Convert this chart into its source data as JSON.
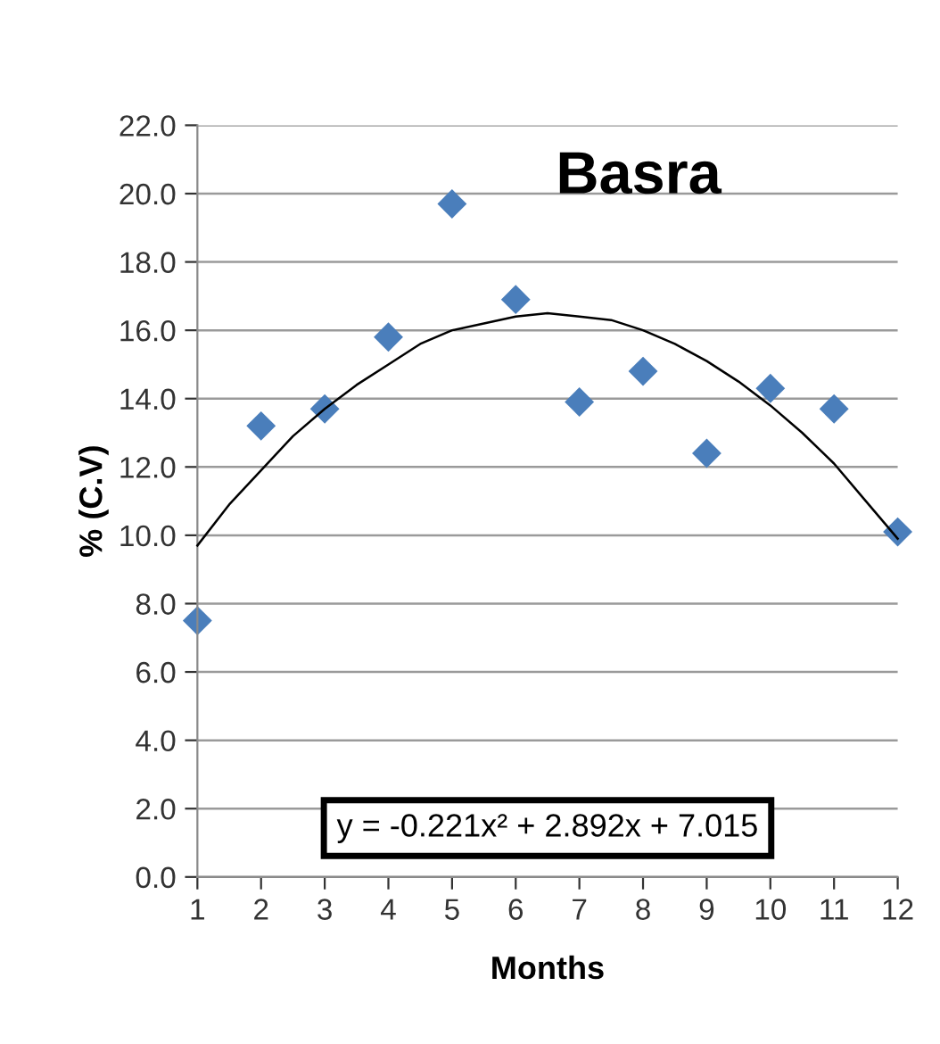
{
  "chart_data": {
    "type": "scatter",
    "title": "Basra",
    "xlabel": "Months",
    "ylabel": "% (C.V)",
    "x": [
      1,
      2,
      3,
      4,
      5,
      6,
      7,
      8,
      9,
      10,
      11,
      12
    ],
    "series": [
      {
        "color": "#4a7ebb",
        "marker": "diamond",
        "values": [
          7.5,
          13.2,
          13.7,
          15.8,
          19.7,
          16.9,
          13.9,
          14.8,
          12.4,
          14.3,
          13.7,
          10.1
        ]
      },
      {
        "type": "line",
        "color": "#000000",
        "marker": "none",
        "line_style": "solid",
        "x": [
          1,
          1.5,
          2,
          2.5,
          3,
          3.5,
          4,
          4.5,
          5,
          5.5,
          6,
          6.5,
          7,
          7.5,
          8,
          8.5,
          9,
          9.5,
          10,
          10.5,
          11,
          11.5,
          12
        ],
        "values": [
          9.7,
          10.9,
          11.9,
          12.9,
          13.7,
          14.4,
          15.0,
          15.6,
          16.0,
          16.2,
          16.4,
          16.5,
          16.4,
          16.3,
          16.0,
          15.6,
          15.1,
          14.5,
          13.8,
          13.0,
          12.1,
          11.0,
          9.9
        ]
      }
    ],
    "annotations": [
      "y = -0.221x² + 2.892x + 7.015"
    ],
    "xlim": [
      1,
      12
    ],
    "xticks": [
      1,
      2,
      3,
      4,
      5,
      6,
      7,
      8,
      9,
      10,
      11,
      12
    ],
    "ylim": [
      0,
      22
    ],
    "yticks": [
      {
        "value": 0,
        "label": "0.0"
      },
      {
        "value": 2,
        "label": "2.0"
      },
      {
        "value": 4,
        "label": "4.0"
      },
      {
        "value": 6,
        "label": "6.0"
      },
      {
        "value": 8,
        "label": "8.0"
      },
      {
        "value": 10,
        "label": "10.0"
      },
      {
        "value": 12,
        "label": "12.0"
      },
      {
        "value": 14,
        "label": "14.0"
      },
      {
        "value": 16,
        "label": "16.0"
      },
      {
        "value": 18,
        "label": "18.0"
      },
      {
        "value": 20,
        "label": "20.0"
      },
      {
        "value": 22,
        "label": "22.0"
      }
    ],
    "grid": "y",
    "legend": false
  }
}
